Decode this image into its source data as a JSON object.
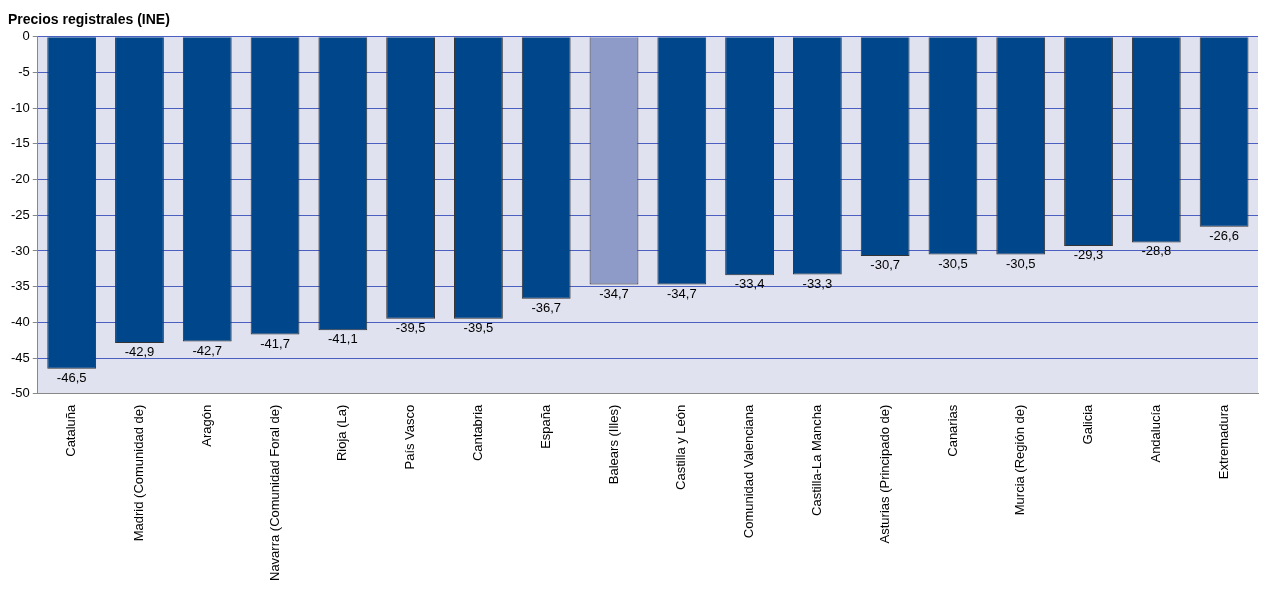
{
  "chart_data": {
    "type": "bar",
    "title": "Precios registrales (INE)",
    "categories": [
      "Cataluña",
      "Madrid (Comunidad de)",
      "Aragón",
      "Navarra (Comunidad Foral de)",
      "Rioja (La)",
      "País Vasco",
      "Cantabria",
      "España",
      "Balears (Illes)",
      "Castilla y León",
      "Comunidad Valenciana",
      "Castilla-La Mancha",
      "Asturias (Principado de)",
      "Canarias",
      "Murcia (Región de)",
      "Galicia",
      "Andalucía",
      "Extremadura"
    ],
    "values": [
      -46.5,
      -42.9,
      -42.7,
      -41.7,
      -41.1,
      -39.5,
      -39.5,
      -36.7,
      -34.7,
      -34.7,
      -33.4,
      -33.3,
      -30.7,
      -30.5,
      -30.5,
      -29.3,
      -28.8,
      -26.6
    ],
    "value_labels": [
      "-46,5",
      "-42,9",
      "-42,7",
      "-41,7",
      "-41,1",
      "-39,5",
      "-39,5",
      "-36,7",
      "-34,7",
      "-34,7",
      "-33,4",
      "-33,3",
      "-30,7",
      "-30,5",
      "-30,5",
      "-29,3",
      "-28,8",
      "-26,6"
    ],
    "colors": [
      "#00468b",
      "#00468b",
      "#00468b",
      "#00468b",
      "#00468b",
      "#00468b",
      "#00468b",
      "#00468b",
      "#8e9ac8",
      "#00468b",
      "#00468b",
      "#00468b",
      "#00468b",
      "#00468b",
      "#00468b",
      "#00468b",
      "#00468b",
      "#00468b"
    ],
    "ylim": [
      -50,
      0
    ],
    "yticks": [
      0,
      -5,
      -10,
      -15,
      -20,
      -25,
      -30,
      -35,
      -40,
      -45,
      -50
    ],
    "grid": "y",
    "legend": false
  }
}
